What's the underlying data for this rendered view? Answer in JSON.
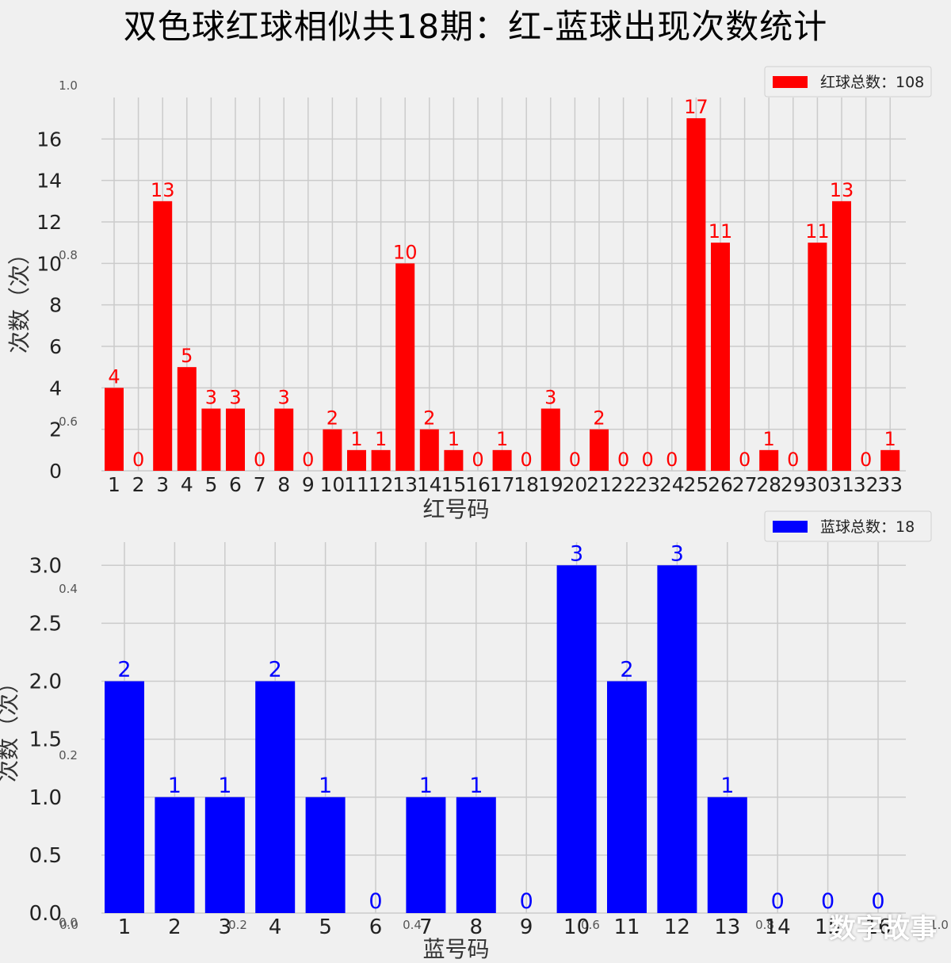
{
  "title": "双色球红球相似共18期：红-蓝球出现次数统计",
  "watermark": "数字故事",
  "chart_data": [
    {
      "type": "bar",
      "color": "#ff0000",
      "categories": [
        "1",
        "2",
        "3",
        "4",
        "5",
        "6",
        "7",
        "8",
        "9",
        "10",
        "11",
        "12",
        "13",
        "14",
        "15",
        "16",
        "17",
        "18",
        "19",
        "20",
        "21",
        "22",
        "23",
        "24",
        "25",
        "26",
        "27",
        "28",
        "29",
        "30",
        "31",
        "32",
        "33"
      ],
      "values": [
        4,
        0,
        13,
        5,
        3,
        3,
        0,
        3,
        0,
        2,
        1,
        1,
        10,
        2,
        1,
        0,
        1,
        0,
        3,
        0,
        2,
        0,
        0,
        0,
        17,
        11,
        0,
        1,
        0,
        11,
        13,
        0,
        1
      ],
      "xlabel": "红号码",
      "ylabel": "次数（次）",
      "ylim": [
        0,
        18
      ],
      "yticks": [
        "0",
        "2",
        "4",
        "6",
        "8",
        "10",
        "12",
        "14",
        "16"
      ],
      "legend": "红球总数：108",
      "legend_position": "top-right",
      "grid": true
    },
    {
      "type": "bar",
      "color": "#0000ff",
      "categories": [
        "1",
        "2",
        "3",
        "4",
        "5",
        "6",
        "7",
        "8",
        "9",
        "10",
        "11",
        "12",
        "13",
        "14",
        "15",
        "16"
      ],
      "values": [
        2,
        1,
        1,
        2,
        1,
        0,
        1,
        1,
        0,
        3,
        2,
        3,
        1,
        0,
        0,
        0
      ],
      "xlabel": "蓝号码",
      "ylabel": "次数（次）",
      "ylim": [
        0,
        3.2
      ],
      "yticks": [
        "0.0",
        "0.5",
        "1.0",
        "1.5",
        "2.0",
        "2.5",
        "3.0"
      ],
      "legend": "蓝球总数：18",
      "legend_position": "top-right",
      "grid": true
    }
  ],
  "ghost_axis": {
    "yticks": [
      "0.0",
      "0.2",
      "0.4",
      "0.6",
      "0.8",
      "1.0"
    ],
    "xticks": [
      "0.0",
      "0.2",
      "0.4",
      "0.6",
      "0.8",
      "1.0"
    ]
  }
}
